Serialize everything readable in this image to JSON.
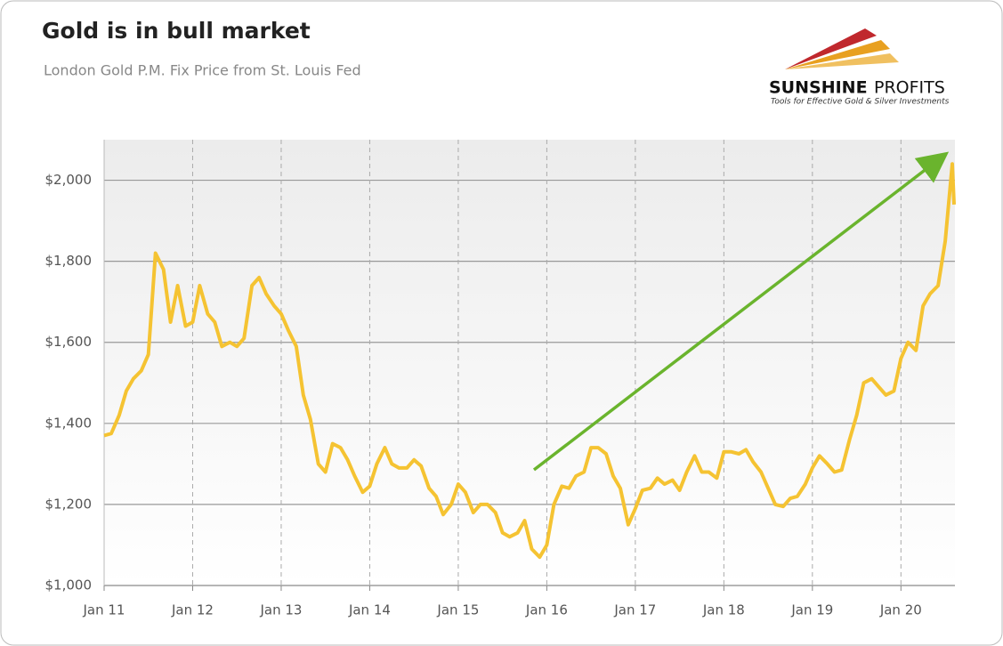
{
  "chart_data": {
    "type": "line",
    "title": "Gold is in bull market",
    "subtitle": "London Gold P.M. Fix Price from St. Louis Fed",
    "logo": {
      "name": "SUNSHINE",
      "name2": "PROFITS",
      "tagline": "Tools for Effective Gold & Silver Investments"
    },
    "x": [
      2011,
      2011.08,
      2011.17,
      2011.25,
      2011.33,
      2011.42,
      2011.5,
      2011.58,
      2011.67,
      2011.75,
      2011.83,
      2011.92,
      2012,
      2012.08,
      2012.17,
      2012.25,
      2012.33,
      2012.42,
      2012.5,
      2012.58,
      2012.67,
      2012.75,
      2012.83,
      2012.92,
      2013,
      2013.08,
      2013.17,
      2013.25,
      2013.33,
      2013.42,
      2013.5,
      2013.58,
      2013.67,
      2013.75,
      2013.83,
      2013.92,
      2014,
      2014.08,
      2014.17,
      2014.25,
      2014.33,
      2014.42,
      2014.5,
      2014.58,
      2014.67,
      2014.75,
      2014.83,
      2014.92,
      2015,
      2015.08,
      2015.17,
      2015.25,
      2015.33,
      2015.42,
      2015.5,
      2015.58,
      2015.67,
      2015.75,
      2015.83,
      2015.92,
      2016,
      2016.08,
      2016.17,
      2016.25,
      2016.33,
      2016.42,
      2016.5,
      2016.58,
      2016.67,
      2016.75,
      2016.83,
      2016.92,
      2017,
      2017.08,
      2017.17,
      2017.25,
      2017.33,
      2017.42,
      2017.5,
      2017.58,
      2017.67,
      2017.75,
      2017.83,
      2017.92,
      2018,
      2018.08,
      2018.17,
      2018.25,
      2018.33,
      2018.42,
      2018.5,
      2018.58,
      2018.67,
      2018.75,
      2018.83,
      2018.92,
      2019,
      2019.08,
      2019.17,
      2019.25,
      2019.33,
      2019.42,
      2019.5,
      2019.58,
      2019.67,
      2019.75,
      2019.83,
      2019.92,
      2020,
      2020.08,
      2020.17,
      2020.25,
      2020.33,
      2020.42,
      2020.5,
      2020.58,
      2020.6
    ],
    "series": [
      {
        "name": "Gold",
        "color": "#f5c332",
        "values": [
          1370,
          1375,
          1420,
          1480,
          1510,
          1530,
          1570,
          1820,
          1780,
          1650,
          1740,
          1640,
          1650,
          1740,
          1670,
          1650,
          1590,
          1600,
          1590,
          1610,
          1740,
          1760,
          1720,
          1690,
          1670,
          1630,
          1590,
          1470,
          1410,
          1300,
          1280,
          1350,
          1340,
          1310,
          1270,
          1230,
          1245,
          1300,
          1340,
          1300,
          1290,
          1290,
          1310,
          1295,
          1240,
          1220,
          1175,
          1200,
          1250,
          1230,
          1180,
          1200,
          1200,
          1180,
          1130,
          1120,
          1130,
          1160,
          1090,
          1070,
          1100,
          1200,
          1245,
          1240,
          1270,
          1280,
          1340,
          1340,
          1325,
          1270,
          1240,
          1150,
          1190,
          1235,
          1240,
          1265,
          1250,
          1260,
          1235,
          1280,
          1320,
          1280,
          1280,
          1265,
          1330,
          1330,
          1325,
          1335,
          1305,
          1280,
          1240,
          1200,
          1195,
          1215,
          1220,
          1250,
          1290,
          1320,
          1300,
          1280,
          1285,
          1360,
          1420,
          1500,
          1510,
          1490,
          1470,
          1480,
          1560,
          1600,
          1580,
          1690,
          1720,
          1740,
          1850,
          2040,
          1940
        ]
      }
    ],
    "xlim": [
      2011,
      2020.61
    ],
    "ylim": [
      1000,
      2100
    ],
    "xticks": [
      {
        "value": 2011,
        "label": "Jan 11"
      },
      {
        "value": 2012,
        "label": "Jan 12"
      },
      {
        "value": 2013,
        "label": "Jan 13"
      },
      {
        "value": 2014,
        "label": "Jan 14"
      },
      {
        "value": 2015,
        "label": "Jan 15"
      },
      {
        "value": 2016,
        "label": "Jan 16"
      },
      {
        "value": 2017,
        "label": "Jan 17"
      },
      {
        "value": 2018,
        "label": "Jan 18"
      },
      {
        "value": 2019,
        "label": "Jan 19"
      },
      {
        "value": 2020,
        "label": "Jan 20"
      }
    ],
    "yticks": [
      {
        "value": 1000,
        "label": "$1,000"
      },
      {
        "value": 1200,
        "label": "$1,200"
      },
      {
        "value": 1400,
        "label": "$1,400"
      },
      {
        "value": 1600,
        "label": "$1,600"
      },
      {
        "value": 1800,
        "label": "$1,800"
      },
      {
        "value": 2000,
        "label": "$2,000"
      }
    ],
    "grid": true
  }
}
